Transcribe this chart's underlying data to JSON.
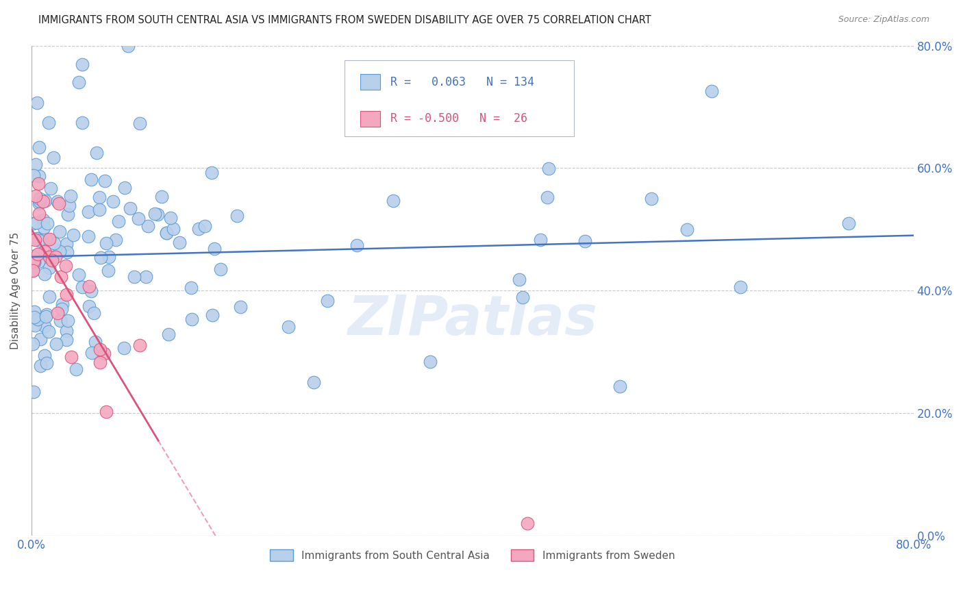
{
  "title": "IMMIGRANTS FROM SOUTH CENTRAL ASIA VS IMMIGRANTS FROM SWEDEN DISABILITY AGE OVER 75 CORRELATION CHART",
  "source": "Source: ZipAtlas.com",
  "ylabel": "Disability Age Over 75",
  "right_y_tick_labels": [
    "0.0%",
    "20.0%",
    "40.0%",
    "60.0%",
    "80.0%"
  ],
  "right_y_tick_vals": [
    0.0,
    0.2,
    0.4,
    0.6,
    0.8
  ],
  "x_tick_vals": [
    0.0,
    0.1,
    0.2,
    0.3,
    0.4,
    0.5,
    0.6,
    0.7,
    0.8
  ],
  "x_tick_labels": [
    "0.0%",
    "",
    "",
    "",
    "",
    "",
    "",
    "",
    "80.0%"
  ],
  "xlim": [
    0.0,
    0.8
  ],
  "ylim": [
    0.0,
    0.8
  ],
  "watermark": "ZIPatlas",
  "legend_entries": [
    {
      "label": "Immigrants from South Central Asia",
      "color": "#b8d0ea",
      "edge_color": "#5b9bd5",
      "R": 0.063,
      "N": 134
    },
    {
      "label": "Immigrants from Sweden",
      "color": "#f4a8c0",
      "edge_color": "#d9547a",
      "R": -0.5,
      "N": 26
    }
  ],
  "blue_line_color": "#4472c4",
  "pink_line_color": "#d9547a",
  "title_color": "#222222",
  "axis_color": "#4472c4",
  "grid_color": "#c8c8c8",
  "background_color": "#ffffff"
}
